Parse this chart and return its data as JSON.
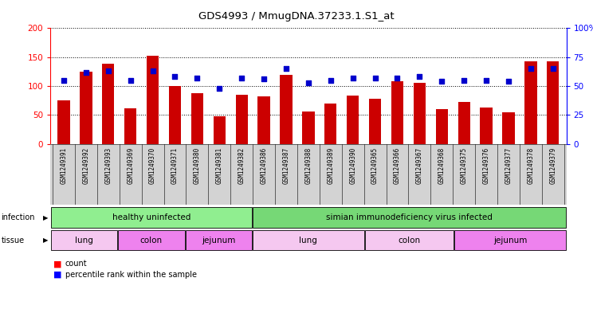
{
  "title": "GDS4993 / MmugDNA.37233.1.S1_at",
  "samples": [
    "GSM1249391",
    "GSM1249392",
    "GSM1249393",
    "GSM1249369",
    "GSM1249370",
    "GSM1249371",
    "GSM1249380",
    "GSM1249381",
    "GSM1249382",
    "GSM1249386",
    "GSM1249387",
    "GSM1249388",
    "GSM1249389",
    "GSM1249390",
    "GSM1249365",
    "GSM1249366",
    "GSM1249367",
    "GSM1249368",
    "GSM1249375",
    "GSM1249376",
    "GSM1249377",
    "GSM1249378",
    "GSM1249379"
  ],
  "counts": [
    75,
    125,
    138,
    62,
    152,
    100,
    88,
    48,
    85,
    82,
    120,
    56,
    70,
    83,
    78,
    108,
    105,
    60,
    72,
    63,
    55,
    143,
    143
  ],
  "percentiles": [
    55,
    62,
    63,
    55,
    63,
    58,
    57,
    48,
    57,
    56,
    65,
    53,
    55,
    57,
    57,
    57,
    58,
    54,
    55,
    55,
    54,
    65,
    65
  ],
  "bar_color": "#cc0000",
  "dot_color": "#0000cc",
  "inf_groups": [
    {
      "label": "healthy uninfected",
      "start": 0,
      "end": 9,
      "color": "#90ee90"
    },
    {
      "label": "simian immunodeficiency virus infected",
      "start": 9,
      "end": 23,
      "color": "#76d876"
    }
  ],
  "tis_groups": [
    {
      "label": "lung",
      "start": 0,
      "end": 3,
      "color": "#f5c8f0"
    },
    {
      "label": "colon",
      "start": 3,
      "end": 6,
      "color": "#ee82ee"
    },
    {
      "label": "jejunum",
      "start": 6,
      "end": 9,
      "color": "#ee82ee"
    },
    {
      "label": "lung",
      "start": 9,
      "end": 14,
      "color": "#f5c8f0"
    },
    {
      "label": "colon",
      "start": 14,
      "end": 18,
      "color": "#f5c8f0"
    },
    {
      "label": "jejunum",
      "start": 18,
      "end": 23,
      "color": "#ee82ee"
    }
  ],
  "xticklabel_bg": "#d3d3d3"
}
